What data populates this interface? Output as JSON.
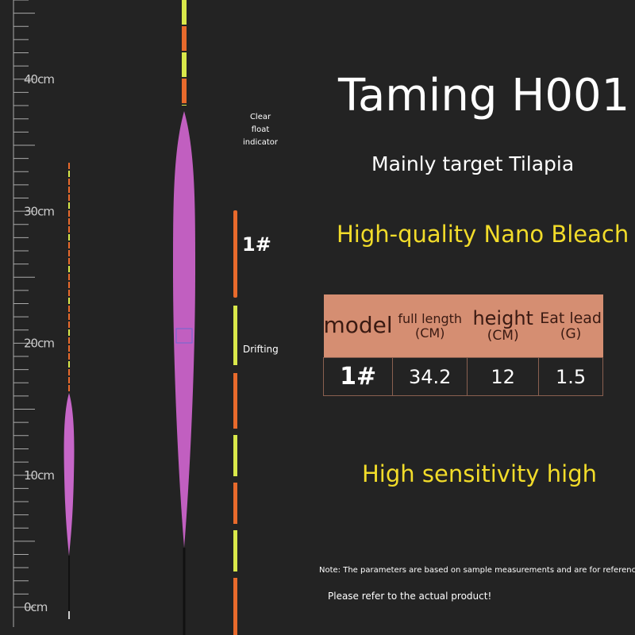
{
  "ruler": {
    "labels": [
      "40cm",
      "30cm",
      "20cm",
      "10cm",
      "0cm"
    ]
  },
  "annotations": {
    "indicator": [
      "Clear",
      "float",
      "indicator"
    ],
    "size": "1#",
    "drifting": "Drifting"
  },
  "header": {
    "title": "Taming H001",
    "subtitle": "Mainly target Tilapia",
    "feature": "High-quality Nano Bleach"
  },
  "table": {
    "header": [
      {
        "label": "model"
      },
      {
        "label": "full length",
        "unit": "(CM)"
      },
      {
        "label": "height",
        "unit": "(CM)"
      },
      {
        "label": "Eat lead",
        "unit": "(G)"
      }
    ],
    "rows": [
      [
        "1#",
        "34.2",
        "12",
        "1.5"
      ]
    ]
  },
  "tagline": "High sensitivity high",
  "notes": [
    "Note: The parameters are based on sample measurements and are for reference only.",
    "Please refer to the actual product!"
  ]
}
